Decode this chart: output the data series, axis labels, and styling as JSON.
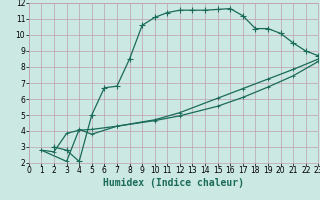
{
  "xlabel": "Humidex (Indice chaleur)",
  "bg_color": "#cce8e2",
  "grid_color": "#c0a0b0",
  "line_color": "#1a6b5a",
  "xlim": [
    0,
    23
  ],
  "ylim": [
    2,
    12
  ],
  "xticks": [
    0,
    1,
    2,
    3,
    4,
    5,
    6,
    7,
    8,
    9,
    10,
    11,
    12,
    13,
    14,
    15,
    16,
    17,
    18,
    19,
    20,
    21,
    22,
    23
  ],
  "yticks": [
    2,
    3,
    4,
    5,
    6,
    7,
    8,
    9,
    10,
    11,
    12
  ],
  "curve1_x": [
    2,
    3,
    4,
    5,
    6,
    7,
    8,
    9,
    10,
    11,
    12,
    13,
    14,
    15,
    16,
    17,
    18,
    19,
    20,
    21,
    22,
    23
  ],
  "curve1_y": [
    3.0,
    2.8,
    2.1,
    5.0,
    6.7,
    6.8,
    8.5,
    10.6,
    11.1,
    11.4,
    11.55,
    11.55,
    11.55,
    11.6,
    11.65,
    11.2,
    10.4,
    10.4,
    10.1,
    9.5,
    9.0,
    8.7
  ],
  "curve2_x": [
    1,
    2,
    3,
    4,
    5,
    7,
    10,
    12,
    15,
    17,
    19,
    21,
    23
  ],
  "curve2_y": [
    2.8,
    2.7,
    3.85,
    4.05,
    4.1,
    4.3,
    4.7,
    5.15,
    6.05,
    6.65,
    7.25,
    7.85,
    8.5
  ],
  "curve3_x": [
    1,
    3,
    4,
    5,
    7,
    10,
    12,
    15,
    17,
    19,
    21,
    23
  ],
  "curve3_y": [
    2.8,
    2.1,
    4.1,
    3.8,
    4.3,
    4.65,
    4.95,
    5.55,
    6.1,
    6.75,
    7.45,
    8.35
  ],
  "markersize": 2.5,
  "linewidth": 0.9,
  "tick_fontsize": 5.5,
  "xlabel_fontsize": 7.0,
  "xlabel_color": "#1a6b5a",
  "xlabel_weight": "bold"
}
